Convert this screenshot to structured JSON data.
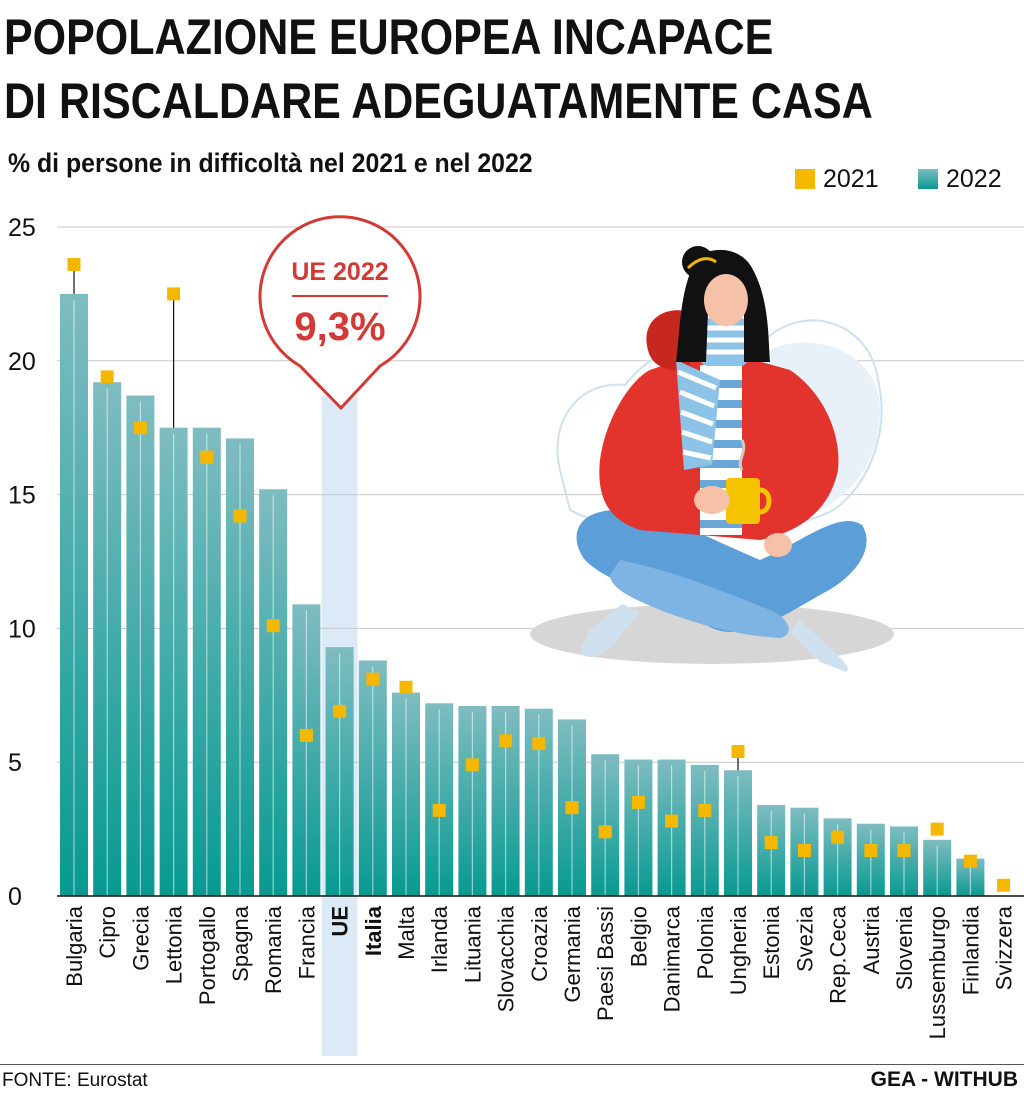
{
  "header": {
    "title_line1": "POPOLAZIONE EUROPEA INCAPACE",
    "title_line2": "DI RISCALDARE ADEGUATAMENTE CASA",
    "subtitle": "% di persone in difficoltà nel 2021 e nel 2022"
  },
  "legend": {
    "items": [
      {
        "label": "2021",
        "color": "#f5b800"
      },
      {
        "label": "2022",
        "color": "#1a9a94"
      }
    ]
  },
  "callout": {
    "label": "UE 2022",
    "value": "9,3%",
    "color": "#d33a35"
  },
  "colors": {
    "bar_top": "#7fbcc1",
    "bar_bottom": "#079a91",
    "marker": "#f5b800",
    "highlight": "#dce9f6",
    "grid": "#c8c8c8"
  },
  "footer": {
    "source": "FONTE: Eurostat",
    "brand": "GEA - WITHUB"
  },
  "chart_data": {
    "type": "bar",
    "title": "POPOLAZIONE EUROPEA INCAPACE DI RISCALDARE ADEGUATAMENTE CASA",
    "subtitle": "% di persone in difficoltà nel 2021 e nel 2022",
    "categories": [
      "Bulgaria",
      "Cipro",
      "Grecia",
      "Lettonia",
      "Portogallo",
      "Spagna",
      "Romania",
      "Francia",
      "UE",
      "Italia",
      "Malta",
      "Irlanda",
      "Lituania",
      "Slovacchia",
      "Croazia",
      "Germania",
      "Paesi Bassi",
      "Belgio",
      "Danimarca",
      "Polonia",
      "Ungheria",
      "Estonia",
      "Svezia",
      "Rep.Ceca",
      "Austria",
      "Slovenia",
      "Lussemburgo",
      "Finlandia",
      "Svizzera"
    ],
    "series": [
      {
        "name": "2022",
        "values": [
          22.5,
          19.2,
          18.7,
          17.5,
          17.5,
          17.1,
          15.2,
          10.9,
          9.3,
          8.8,
          7.6,
          7.2,
          7.1,
          7.1,
          7.0,
          6.6,
          5.3,
          5.1,
          5.1,
          4.9,
          4.7,
          3.4,
          3.3,
          2.9,
          2.7,
          2.6,
          2.1,
          1.4,
          0
        ]
      },
      {
        "name": "2021",
        "values": [
          23.6,
          19.4,
          17.5,
          22.5,
          16.4,
          14.2,
          10.1,
          6.0,
          6.9,
          8.1,
          7.8,
          3.2,
          4.9,
          5.8,
          5.7,
          3.3,
          2.4,
          3.5,
          2.8,
          3.2,
          5.4,
          2.0,
          1.7,
          2.2,
          1.7,
          1.7,
          2.5,
          1.3,
          0.4
        ]
      }
    ],
    "highlight": [
      "UE",
      "Italia"
    ],
    "y_ticks": [
      0,
      5,
      10,
      15,
      20,
      25
    ],
    "ylim": [
      0,
      25
    ],
    "grid": true,
    "legend_position": "top-right"
  }
}
